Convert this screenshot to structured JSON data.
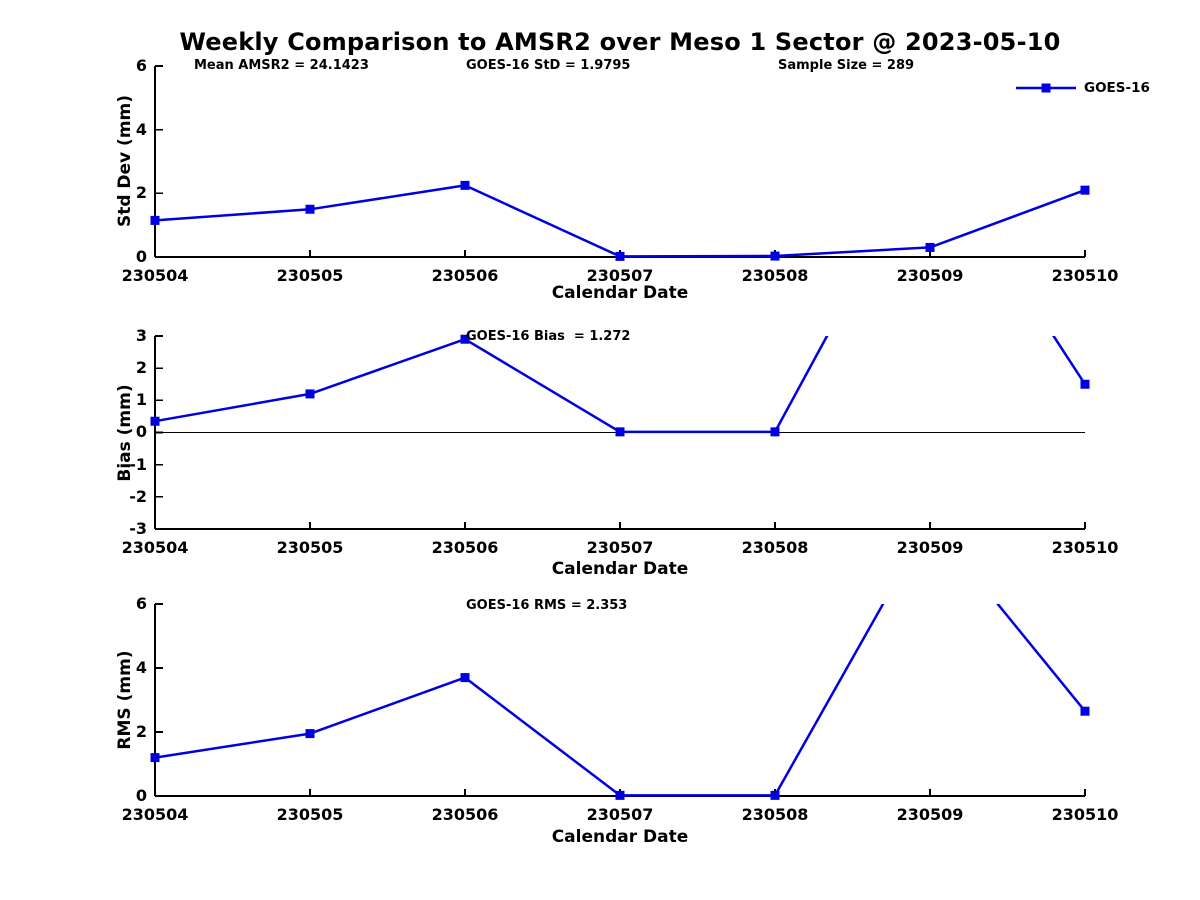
{
  "figure": {
    "title": "Weekly Comparison to AMSR2 over Meso 1 Sector @ 2023-05-10",
    "background_color": "#FFFFFF",
    "line_color": "#0000E0",
    "axis_color": "#000000",
    "legend": {
      "label": "GOES-16",
      "marker": "filled-square",
      "position": "top-right"
    }
  },
  "chart_data": [
    {
      "type": "line",
      "id": "std-dev",
      "ylabel": "Std Dev (mm)",
      "xlabel": "Calendar Date",
      "annotations": {
        "left": "Mean AMSR2 = 24.1423",
        "center": "GOES-16 StD = 1.9795",
        "right": "Sample Size = 289"
      },
      "categories": [
        "230504",
        "230505",
        "230506",
        "230507",
        "230508",
        "230509",
        "230510"
      ],
      "series": [
        {
          "name": "GOES-16",
          "marker": "square",
          "values": [
            1.15,
            1.5,
            2.25,
            0.02,
            0.03,
            0.3,
            2.1
          ]
        }
      ],
      "ylim": [
        0,
        6
      ],
      "yticks": [
        6,
        4,
        2,
        0
      ],
      "grid": false
    },
    {
      "type": "line",
      "id": "bias",
      "ylabel": "Bias (mm)",
      "xlabel": "Calendar Date",
      "annotations": {
        "center": "GOES-16 Bias  = 1.272"
      },
      "categories": [
        "230504",
        "230505",
        "230506",
        "230507",
        "230508",
        "230509",
        "230510"
      ],
      "series": [
        {
          "name": "GOES-16",
          "marker": "square",
          "values": [
            0.35,
            1.2,
            2.9,
            0.02,
            0.02,
            8.9,
            1.5
          ],
          "offscale_points": [
            {
              "category": "230509",
              "value_estimated": 8.9,
              "note": "exceeds ylim; line clipped at +3, marker not drawn"
            }
          ]
        }
      ],
      "ylim": [
        -3,
        3
      ],
      "yticks": [
        3,
        2,
        1,
        0,
        -1,
        -2,
        -3
      ],
      "zero_line": true,
      "grid": false
    },
    {
      "type": "line",
      "id": "rms",
      "ylabel": "RMS (mm)",
      "xlabel": "Calendar Date",
      "annotations": {
        "center": "GOES-16 RMS = 2.353"
      },
      "categories": [
        "230504",
        "230505",
        "230506",
        "230507",
        "230508",
        "230509",
        "230510"
      ],
      "series": [
        {
          "name": "GOES-16",
          "marker": "square",
          "values": [
            1.2,
            1.95,
            3.7,
            0.02,
            0.02,
            8.6,
            2.65
          ],
          "offscale_points": [
            {
              "category": "230509",
              "value_estimated": 8.6,
              "note": "exceeds ylim; line clipped at +6, marker not drawn"
            }
          ]
        }
      ],
      "ylim": [
        0,
        6
      ],
      "yticks": [
        6,
        4,
        2,
        0
      ],
      "grid": false
    }
  ]
}
